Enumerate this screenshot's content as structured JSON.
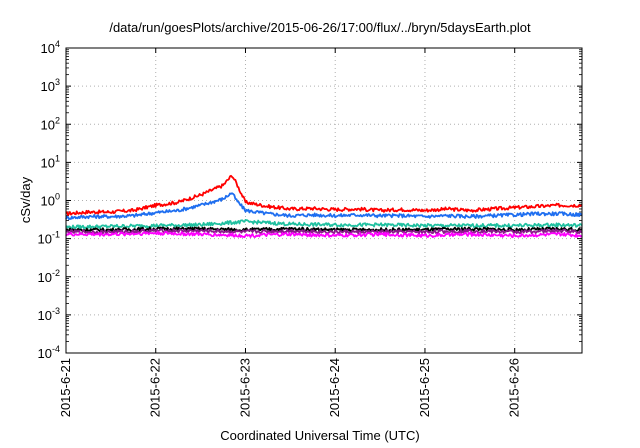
{
  "chart_data": {
    "type": "line",
    "title": "/data/run/goesPlots/archive/2015-06-26/17:00/flux/../bryn/5daysEarth.plot",
    "xlabel": "Coordinated Universal Time (UTC)",
    "ylabel": "cSv/day",
    "yscale": "log",
    "ylim": [
      0.0001,
      10000
    ],
    "xlim": [
      0,
      5.75
    ],
    "x_unit": "days since 2015-6-21",
    "xticks": [
      {
        "x": 0,
        "label": "2015-6-21"
      },
      {
        "x": 1,
        "label": "2015-6-22"
      },
      {
        "x": 2,
        "label": "2015-6-23"
      },
      {
        "x": 3,
        "label": "2015-6-24"
      },
      {
        "x": 4,
        "label": "2015-6-25"
      },
      {
        "x": 5,
        "label": "2015-6-26"
      }
    ],
    "yticks": [
      {
        "base": "10",
        "exp": "-4",
        "value": 0.0001
      },
      {
        "base": "10",
        "exp": "-3",
        "value": 0.001
      },
      {
        "base": "10",
        "exp": "-2",
        "value": 0.01
      },
      {
        "base": "10",
        "exp": "-1",
        "value": 0.1
      },
      {
        "base": "10",
        "exp": "0",
        "value": 1
      },
      {
        "base": "10",
        "exp": "1",
        "value": 10
      },
      {
        "base": "10",
        "exp": "2",
        "value": 100
      },
      {
        "base": "10",
        "exp": "3",
        "value": 1000
      },
      {
        "base": "10",
        "exp": "4",
        "value": 10000
      }
    ],
    "grid": true,
    "legend": "none",
    "series": [
      {
        "color": "#ff0000",
        "x": [
          0,
          0.25,
          0.5,
          0.75,
          1.0,
          1.25,
          1.5,
          1.75,
          1.85,
          1.9,
          2.0,
          2.25,
          2.5,
          2.75,
          3.0,
          3.25,
          3.5,
          3.75,
          4.0,
          4.25,
          4.5,
          4.75,
          5.0,
          5.25,
          5.5,
          5.75
        ],
        "values": [
          0.45,
          0.5,
          0.5,
          0.55,
          0.75,
          0.9,
          1.4,
          2.5,
          4.6,
          2.8,
          0.9,
          0.7,
          0.6,
          0.62,
          0.58,
          0.6,
          0.55,
          0.58,
          0.55,
          0.6,
          0.55,
          0.6,
          0.65,
          0.7,
          0.75,
          0.75
        ]
      },
      {
        "color": "#1e6ef0",
        "x": [
          0,
          0.25,
          0.5,
          0.75,
          1.0,
          1.25,
          1.5,
          1.75,
          1.85,
          1.9,
          2.0,
          2.25,
          2.5,
          2.75,
          3.0,
          3.25,
          3.5,
          3.75,
          4.0,
          4.25,
          4.5,
          4.75,
          5.0,
          5.25,
          5.5,
          5.75
        ],
        "values": [
          0.35,
          0.38,
          0.38,
          0.4,
          0.48,
          0.55,
          0.75,
          1.1,
          1.6,
          1.0,
          0.55,
          0.45,
          0.4,
          0.42,
          0.4,
          0.42,
          0.4,
          0.4,
          0.38,
          0.4,
          0.38,
          0.4,
          0.42,
          0.45,
          0.45,
          0.42
        ]
      },
      {
        "color": "#20c0a0",
        "x": [
          0,
          0.5,
          1.0,
          1.5,
          2.0,
          2.25,
          2.5,
          3.0,
          3.5,
          4.0,
          4.5,
          5.0,
          5.5,
          5.75
        ],
        "values": [
          0.2,
          0.21,
          0.22,
          0.23,
          0.28,
          0.26,
          0.24,
          0.23,
          0.23,
          0.22,
          0.22,
          0.22,
          0.23,
          0.22
        ]
      },
      {
        "color": "#000000",
        "x": [
          0,
          0.5,
          1.0,
          1.5,
          2.0,
          2.5,
          3.0,
          3.5,
          4.0,
          4.5,
          5.0,
          5.5,
          5.75
        ],
        "values": [
          0.17,
          0.17,
          0.18,
          0.18,
          0.17,
          0.18,
          0.17,
          0.17,
          0.17,
          0.18,
          0.17,
          0.18,
          0.17
        ]
      },
      {
        "color": "#8b1a8b",
        "x": [
          0,
          0.5,
          1.0,
          1.5,
          2.0,
          2.5,
          3.0,
          3.5,
          4.0,
          4.5,
          5.0,
          5.5,
          5.75
        ],
        "values": [
          0.15,
          0.15,
          0.16,
          0.16,
          0.15,
          0.16,
          0.15,
          0.15,
          0.15,
          0.16,
          0.15,
          0.16,
          0.15
        ]
      },
      {
        "color": "#ff00ff",
        "x": [
          0,
          0.5,
          1.0,
          1.5,
          2.0,
          2.5,
          3.0,
          3.5,
          4.0,
          4.5,
          5.0,
          5.5,
          5.75
        ],
        "values": [
          0.13,
          0.13,
          0.14,
          0.13,
          0.12,
          0.13,
          0.12,
          0.13,
          0.12,
          0.13,
          0.12,
          0.13,
          0.12
        ]
      }
    ]
  }
}
